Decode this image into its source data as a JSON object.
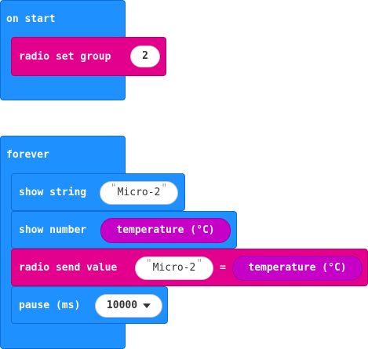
{
  "on_start": {
    "hat_label": "on start",
    "radio_set_group": {
      "label": "radio set group",
      "value": "2"
    }
  },
  "forever": {
    "hat_label": "forever",
    "show_string": {
      "label": "show string",
      "value": "Micro-2"
    },
    "show_number": {
      "label": "show number",
      "reporter": "temperature (°C)"
    },
    "radio_send_value": {
      "label": "radio send value",
      "name": "Micro-2",
      "equals": "=",
      "reporter": "temperature (°C)"
    },
    "pause": {
      "label": "pause (ms)",
      "value": "10000"
    }
  },
  "colors": {
    "loops_blue": "#1e90ff",
    "radio_pink": "#e3008c",
    "input_purple": "#c700c7"
  }
}
